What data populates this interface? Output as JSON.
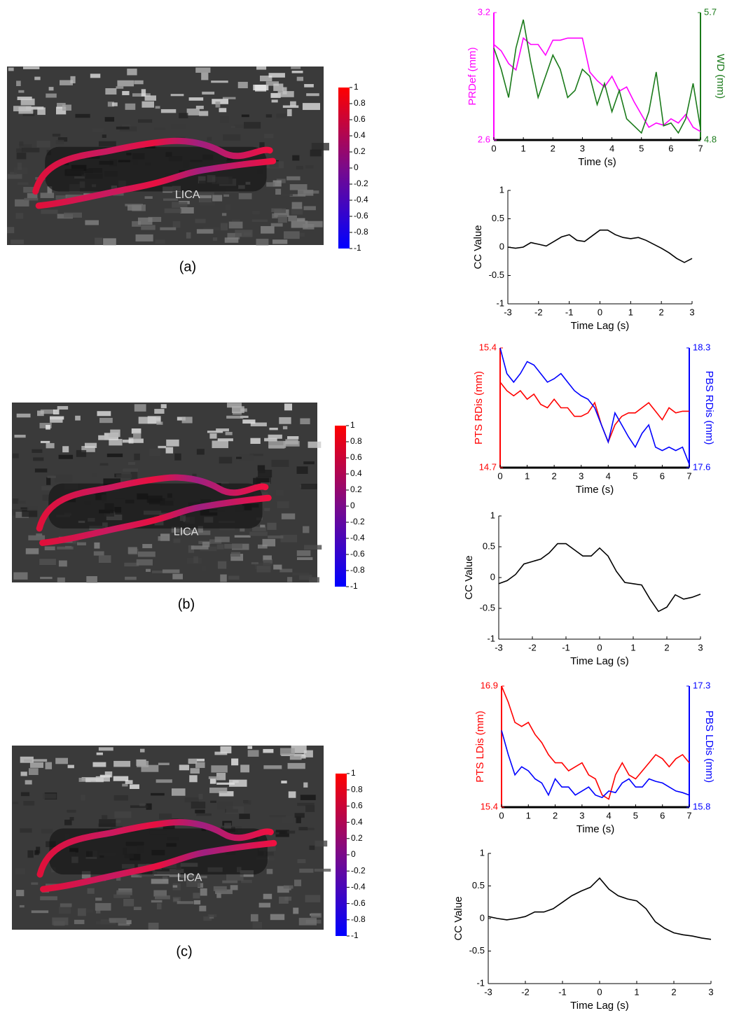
{
  "chart_data": [
    {
      "type": "line",
      "x": [
        0,
        0.25,
        0.5,
        0.75,
        1,
        1.25,
        1.5,
        1.75,
        2,
        2.25,
        2.5,
        2.75,
        3,
        3.25,
        3.5,
        3.75,
        4,
        4.25,
        4.5,
        4.75,
        5,
        5.25,
        5.5,
        5.75,
        6,
        6.25,
        6.5,
        6.75,
        7
      ],
      "xlabel": "Time (s)",
      "xlim": [
        0,
        7
      ],
      "xticks": [
        0,
        1,
        2,
        3,
        4,
        5,
        6,
        7
      ],
      "ylim": [
        2.6,
        3.2
      ],
      "yticks": [
        2.6,
        3.2
      ],
      "y2lim": [
        4.8,
        5.7
      ],
      "y2ticks": [
        4.8,
        5.7
      ],
      "series": [
        {
          "name": "PRDef (mm)",
          "color": "#ff00ff",
          "values": [
            3.05,
            3.02,
            2.96,
            2.93,
            3.08,
            3.05,
            3.05,
            3.0,
            3.07,
            3.07,
            3.08,
            3.08,
            3.08,
            2.92,
            2.88,
            2.85,
            2.9,
            2.83,
            2.85,
            2.78,
            2.72,
            2.66,
            2.68,
            2.67,
            2.7,
            2.68,
            2.72,
            2.66,
            2.64
          ]
        },
        {
          "name": "WD (mm)",
          "color": "#1a7a1a",
          "axis": "y2",
          "values": [
            5.45,
            5.3,
            5.1,
            5.45,
            5.65,
            5.35,
            5.1,
            5.25,
            5.4,
            5.3,
            5.1,
            5.15,
            5.3,
            5.25,
            5.05,
            5.2,
            5.0,
            5.15,
            4.95,
            4.9,
            4.85,
            5.0,
            5.28,
            4.9,
            4.92,
            4.85,
            4.95,
            5.2,
            4.88
          ]
        }
      ]
    },
    {
      "type": "line",
      "x": [
        -3,
        -2.75,
        -2.5,
        -2.25,
        -2,
        -1.75,
        -1.5,
        -1.25,
        -1,
        -0.75,
        -0.5,
        -0.25,
        0,
        0.25,
        0.5,
        0.75,
        1,
        1.25,
        1.5,
        1.75,
        2,
        2.25,
        2.5,
        2.75,
        3
      ],
      "xlabel": "Time Lag (s)",
      "ylabel": "CC Value",
      "xlim": [
        -3,
        3
      ],
      "xticks": [
        -3,
        -2,
        -1,
        0,
        1,
        2,
        3
      ],
      "ylim": [
        -1,
        1
      ],
      "yticks": [
        -1,
        -0.5,
        0,
        0.5,
        1
      ],
      "series": [
        {
          "color": "#000000",
          "values": [
            0,
            -0.02,
            0.0,
            0.08,
            0.05,
            0.02,
            0.1,
            0.18,
            0.22,
            0.12,
            0.1,
            0.2,
            0.3,
            0.3,
            0.22,
            0.17,
            0.15,
            0.17,
            0.12,
            0.05,
            -0.02,
            -0.1,
            -0.2,
            -0.27,
            -0.2
          ]
        }
      ]
    },
    {
      "type": "line",
      "x": [
        0,
        0.25,
        0.5,
        0.75,
        1,
        1.25,
        1.5,
        1.75,
        2,
        2.25,
        2.5,
        2.75,
        3,
        3.25,
        3.5,
        3.75,
        4,
        4.25,
        4.5,
        4.75,
        5,
        5.25,
        5.5,
        5.75,
        6,
        6.25,
        6.5,
        6.75,
        7
      ],
      "xlabel": "Time (s)",
      "xlim": [
        0,
        7
      ],
      "xticks": [
        0,
        1,
        2,
        3,
        4,
        5,
        6,
        7
      ],
      "ylim": [
        14.7,
        15.4
      ],
      "yticks": [
        14.7,
        15.4
      ],
      "y2lim": [
        17.6,
        18.3
      ],
      "y2ticks": [
        17.6,
        18.3
      ],
      "series": [
        {
          "name": "PTS RDis (mm)",
          "color": "#ff0000",
          "values": [
            15.2,
            15.15,
            15.12,
            15.15,
            15.1,
            15.13,
            15.07,
            15.05,
            15.1,
            15.05,
            15.05,
            15.0,
            15.0,
            15.02,
            15.08,
            14.95,
            14.85,
            14.95,
            15.0,
            15.02,
            15.02,
            15.05,
            15.08,
            15.03,
            14.98,
            15.05,
            15.02,
            15.03,
            15.03
          ]
        },
        {
          "name": "PBS RDis (mm)",
          "color": "#0000ff",
          "axis": "y2",
          "values": [
            18.3,
            18.15,
            18.1,
            18.15,
            18.22,
            18.2,
            18.15,
            18.1,
            18.12,
            18.15,
            18.1,
            18.05,
            18.02,
            18.0,
            17.95,
            17.85,
            17.75,
            17.92,
            17.85,
            17.78,
            17.72,
            17.8,
            17.85,
            17.72,
            17.7,
            17.72,
            17.7,
            17.72,
            17.62
          ]
        }
      ]
    },
    {
      "type": "line",
      "x": [
        -3,
        -2.75,
        -2.5,
        -2.25,
        -2,
        -1.75,
        -1.5,
        -1.25,
        -1,
        -0.75,
        -0.5,
        -0.25,
        0,
        0.25,
        0.5,
        0.75,
        1,
        1.25,
        1.5,
        1.75,
        2,
        2.25,
        2.5,
        2.75,
        3
      ],
      "xlabel": "Time Lag (s)",
      "ylabel": "CC Value",
      "xlim": [
        -3,
        3
      ],
      "xticks": [
        -3,
        -2,
        -1,
        0,
        1,
        2,
        3
      ],
      "ylim": [
        -1,
        1
      ],
      "yticks": [
        -1,
        -0.5,
        0,
        0.5,
        1
      ],
      "series": [
        {
          "color": "#000000",
          "values": [
            -0.1,
            -0.05,
            0.05,
            0.22,
            0.26,
            0.3,
            0.4,
            0.55,
            0.55,
            0.45,
            0.35,
            0.35,
            0.48,
            0.35,
            0.1,
            -0.08,
            -0.1,
            -0.12,
            -0.35,
            -0.55,
            -0.48,
            -0.28,
            -0.35,
            -0.32,
            -0.27
          ]
        }
      ]
    },
    {
      "type": "line",
      "x": [
        0,
        0.25,
        0.5,
        0.75,
        1,
        1.25,
        1.5,
        1.75,
        2,
        2.25,
        2.5,
        2.75,
        3,
        3.25,
        3.5,
        3.75,
        4,
        4.25,
        4.5,
        4.75,
        5,
        5.25,
        5.5,
        5.75,
        6,
        6.25,
        6.5,
        6.75,
        7
      ],
      "xlabel": "Time (s)",
      "xlim": [
        0,
        7
      ],
      "xticks": [
        0,
        1,
        2,
        3,
        4,
        5,
        6,
        7
      ],
      "ylim": [
        15.4,
        16.9
      ],
      "yticks": [
        15.4,
        16.9
      ],
      "y2lim": [
        15.8,
        17.3
      ],
      "y2ticks": [
        15.8,
        17.3
      ],
      "series": [
        {
          "name": "PTS LDis (mm)",
          "color": "#ff0000",
          "values": [
            16.9,
            16.7,
            16.45,
            16.4,
            16.45,
            16.3,
            16.2,
            16.05,
            15.95,
            15.95,
            15.85,
            15.9,
            15.95,
            15.8,
            15.75,
            15.55,
            15.5,
            15.8,
            15.95,
            15.8,
            15.75,
            15.85,
            15.95,
            16.05,
            16.0,
            15.9,
            16.0,
            16.05,
            15.95
          ]
        },
        {
          "name": "PBS LDis (mm)",
          "color": "#0000ff",
          "axis": "y2",
          "values": [
            16.75,
            16.45,
            16.2,
            16.3,
            16.25,
            16.15,
            16.1,
            15.95,
            16.15,
            16.05,
            16.05,
            15.95,
            16.0,
            16.05,
            15.95,
            15.92,
            16.0,
            15.98,
            16.1,
            16.15,
            16.05,
            16.05,
            16.15,
            16.12,
            16.1,
            16.05,
            16.0,
            15.98,
            15.95
          ]
        }
      ]
    },
    {
      "type": "line",
      "x": [
        -3,
        -2.75,
        -2.5,
        -2.25,
        -2,
        -1.75,
        -1.5,
        -1.25,
        -1,
        -0.75,
        -0.5,
        -0.25,
        0,
        0.25,
        0.5,
        0.75,
        1,
        1.25,
        1.5,
        1.75,
        2,
        2.25,
        2.5,
        2.75,
        3
      ],
      "xlabel": "Time Lag (s)",
      "ylabel": "CC Value",
      "xlim": [
        -3,
        3
      ],
      "xticks": [
        -3,
        -2,
        -1,
        0,
        1,
        2,
        3
      ],
      "ylim": [
        -1,
        1
      ],
      "yticks": [
        -1,
        -0.5,
        0,
        0.5,
        1
      ],
      "series": [
        {
          "color": "#000000",
          "values": [
            0.03,
            0.0,
            -0.02,
            0.0,
            0.03,
            0.1,
            0.1,
            0.15,
            0.25,
            0.35,
            0.42,
            0.48,
            0.62,
            0.45,
            0.35,
            0.3,
            0.27,
            0.15,
            -0.05,
            -0.15,
            -0.22,
            -0.25,
            -0.27,
            -0.3,
            -0.32
          ]
        }
      ]
    }
  ],
  "panels": [
    {
      "label": "(a)",
      "image_label": "LICA",
      "colorbar_lim": [
        -1,
        1
      ],
      "colorbar_ticks": [
        1,
        0.8,
        0.6,
        0.4,
        0.2,
        0,
        -0.2,
        -0.4,
        -0.6,
        -0.8,
        -1
      ]
    },
    {
      "label": "(b)",
      "image_label": "LICA",
      "colorbar_lim": [
        -1,
        1
      ],
      "colorbar_ticks": [
        1,
        0.8,
        0.6,
        0.4,
        0.2,
        0,
        -0.2,
        -0.4,
        -0.6,
        -0.8,
        -1
      ]
    },
    {
      "label": "(c)",
      "image_label": "LICA",
      "colorbar_lim": [
        -1,
        1
      ],
      "colorbar_ticks": [
        1,
        0.8,
        0.6,
        0.4,
        0.2,
        0,
        -0.2,
        -0.4,
        -0.6,
        -0.8,
        -1
      ]
    }
  ]
}
